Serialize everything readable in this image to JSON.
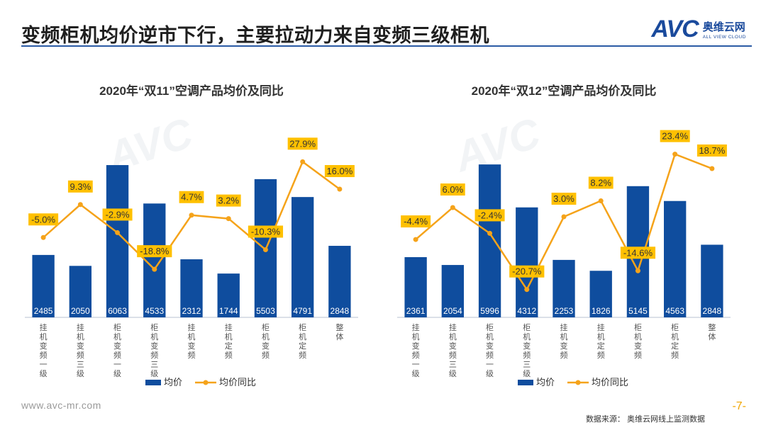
{
  "header": {
    "title": "变频柜机均价逆市下行，主要拉动力来自变频三级柜机",
    "logo_mark": "AVC",
    "logo_cn": "奥维云网",
    "logo_en": "ALL VIEW CLOUD"
  },
  "footer": {
    "url": "www.avc-mr.com",
    "page": "-7-",
    "source": "数据来源：  奥维云网线上监测数据"
  },
  "colors": {
    "bar": "#0f4d9e",
    "line": "#f5a31a",
    "label_bg": "#ffc000",
    "rule": "#2b5aa5"
  },
  "chart_data": [
    {
      "type": "bar",
      "title": "2020年“双11”空调产品均价及同比",
      "categories": [
        "挂机变频一级",
        "挂机变频三级",
        "柜机变频一级",
        "柜机变频三级",
        "挂机变频",
        "挂机定频",
        "柜机变频",
        "柜机定频",
        "整体"
      ],
      "series": [
        {
          "name": "均价",
          "kind": "bar",
          "values": [
            2485,
            2050,
            6063,
            4533,
            2312,
            1744,
            5503,
            4791,
            2848
          ]
        },
        {
          "name": "均价同比",
          "kind": "line",
          "values": [
            -5.0,
            9.3,
            -2.9,
            -18.8,
            4.7,
            3.2,
            -10.3,
            27.9,
            16.0
          ],
          "labels": [
            "-5.0%",
            "9.3%",
            "-2.9%",
            "-18.8%",
            "4.7%",
            "3.2%",
            "-10.3%",
            "27.9%",
            "16.0%"
          ]
        }
      ],
      "ylim_bar": [
        0,
        6600
      ],
      "ylim_line": [
        -40,
        40
      ],
      "legend": [
        "均价",
        "均价同比"
      ],
      "legend_position": "bottom"
    },
    {
      "type": "bar",
      "title": "2020年“双12”空调产品均价及同比",
      "categories": [
        "挂机变频一级",
        "挂机变频三级",
        "柜机变频一级",
        "柜机变频三级",
        "挂机变频",
        "挂机定频",
        "柜机变频",
        "柜机定频",
        "整体"
      ],
      "series": [
        {
          "name": "均价",
          "kind": "bar",
          "values": [
            2361,
            2054,
            5996,
            4312,
            2253,
            1826,
            5145,
            4563,
            2848
          ]
        },
        {
          "name": "均价同比",
          "kind": "line",
          "values": [
            -4.4,
            6.0,
            -2.4,
            -20.7,
            3.0,
            8.2,
            -14.6,
            23.4,
            18.7
          ],
          "labels": [
            "-4.4%",
            "6.0%",
            "-2.4%",
            "-20.7%",
            "3.0%",
            "8.2%",
            "-14.6%",
            "23.4%",
            "18.7%"
          ]
        }
      ],
      "ylim_bar": [
        0,
        6500
      ],
      "ylim_line": [
        -30,
        30
      ],
      "legend": [
        "均价",
        "均价同比"
      ],
      "legend_position": "bottom"
    }
  ]
}
